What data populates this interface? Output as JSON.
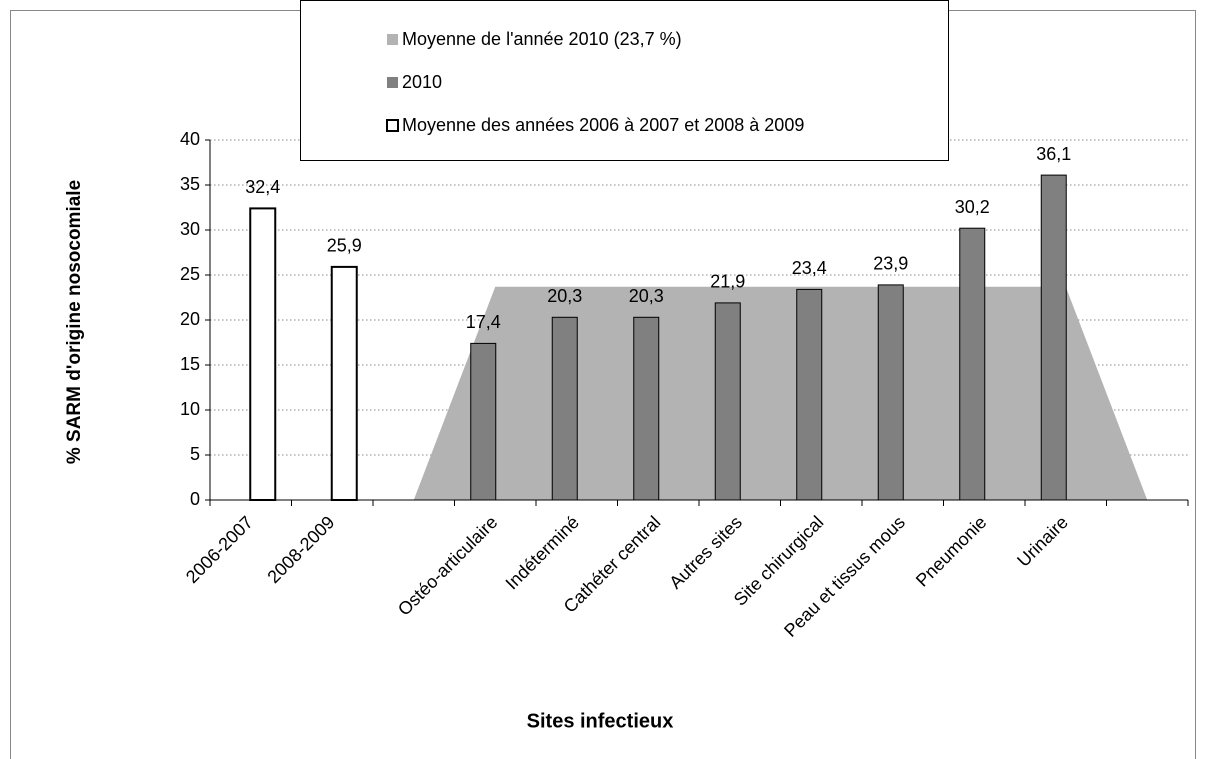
{
  "chart_data": {
    "type": "bar",
    "x_title": "Sites infectieux",
    "y_title": "% SARM d'origine nosocomiale",
    "categories": [
      "2006-2007",
      "2008-2009",
      null,
      "Ostéo-articulaire",
      "Indéterminé",
      "Cathéter central",
      "Autres sites",
      "Site chirurgical",
      "Peau et tissus mous",
      "Pneumonie",
      "Urinaire",
      null
    ],
    "series": [
      {
        "name": "Moyenne de l'année 2010 (23,7 %)",
        "color": "#b3b3b3",
        "kind": "area",
        "values": [
          null,
          null,
          0,
          23.7,
          23.7,
          23.7,
          23.7,
          23.7,
          23.7,
          23.7,
          23.7,
          0
        ]
      },
      {
        "name": "2010",
        "color": "#808080",
        "kind": "bar",
        "values": [
          null,
          null,
          null,
          17.4,
          20.3,
          20.3,
          21.9,
          23.4,
          23.9,
          30.2,
          36.1,
          null
        ],
        "value_labels": [
          null,
          null,
          null,
          "17,4",
          "20,3",
          "20,3",
          "21,9",
          "23,4",
          "23,9",
          "30,2",
          "36,1",
          null
        ]
      },
      {
        "name": "Moyenne des années 2006 à 2007 et 2008 à 2009",
        "color": "#ffffff",
        "kind": "bar",
        "values": [
          32.4,
          25.9,
          null,
          null,
          null,
          null,
          null,
          null,
          null,
          null,
          null,
          null
        ],
        "value_labels": [
          "32,4",
          "25,9",
          null,
          null,
          null,
          null,
          null,
          null,
          null,
          null,
          null,
          null
        ]
      }
    ],
    "ylim": [
      0,
      40
    ],
    "yticks": [
      0,
      5,
      10,
      15,
      20,
      25,
      30,
      35,
      40
    ],
    "grid": true
  }
}
